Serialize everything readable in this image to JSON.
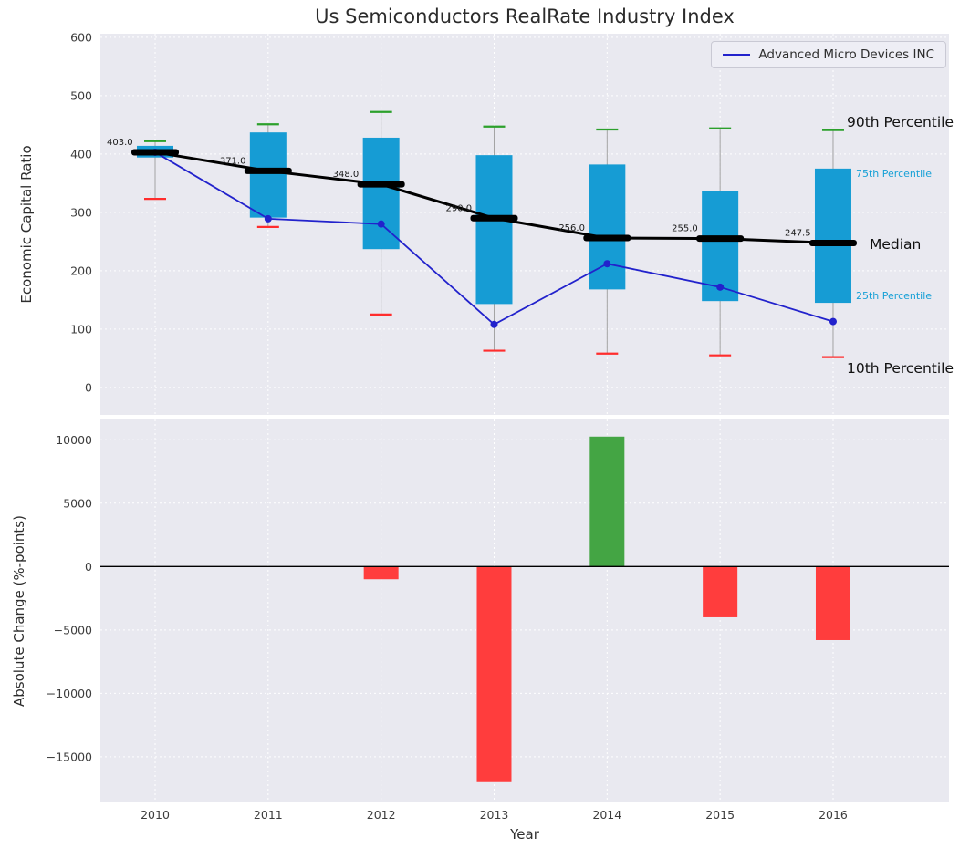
{
  "chart_data": [
    {
      "type": "boxplot+line",
      "title": "Us Semiconductors RealRate Industry Index",
      "ylabel": "Economic Capital Ratio",
      "ylim": [
        -47,
        606
      ],
      "yticks": [
        0,
        100,
        200,
        300,
        400,
        500,
        600
      ],
      "x": [
        2010,
        2011,
        2012,
        2013,
        2014,
        2015,
        2016
      ],
      "boxes": {
        "median": [
          403.0,
          371.0,
          348.0,
          290.0,
          256.0,
          255.0,
          247.5
        ],
        "median_labels": [
          "403.0",
          "371.0",
          "348.0",
          "290.0",
          "256.0",
          "255.0",
          "247.5"
        ],
        "p25": [
          394,
          291,
          237,
          143,
          168,
          148,
          145
        ],
        "p75": [
          414,
          437,
          428,
          398,
          382,
          337,
          375
        ],
        "p10": [
          323,
          275,
          125,
          63,
          58,
          55,
          52
        ],
        "p90": [
          422,
          451,
          472,
          447,
          442,
          444,
          441
        ]
      },
      "series": [
        {
          "name": "Advanced Micro Devices INC",
          "values": [
            403,
            289,
            280,
            108,
            212,
            172,
            113
          ]
        }
      ],
      "legend_label": "Advanced Micro Devices INC",
      "legend_position": "upper right",
      "right_labels": {
        "p90": "90th Percentile",
        "p75": "75th Percentile",
        "median": "Median",
        "p25": "25th Percentile",
        "p10": "10th Percentile"
      },
      "grid": true
    },
    {
      "type": "bar",
      "ylabel": "Absolute Change (%-points)",
      "xlabel": "Year",
      "ylim": [
        -18600,
        11600
      ],
      "yticks": [
        -15000,
        -10000,
        -5000,
        0,
        5000,
        10000
      ],
      "categories": [
        2010,
        2011,
        2012,
        2013,
        2014,
        2015,
        2016
      ],
      "values": [
        0,
        0,
        -1000,
        -17000,
        10250,
        -4000,
        -5800
      ],
      "grid": true
    }
  ],
  "colors": {
    "figure_background": "#ffffff",
    "axes_background": "#e9e9f0",
    "grid": "#ffffff",
    "box_fill": "#169cd4",
    "median": "#000000",
    "whisker": "#a3a3a3",
    "cap_p90": "#2ca02c",
    "cap_p10": "#ff2d2d",
    "series_line": "#2222cc",
    "bar_positive": "#44a544",
    "bar_negative": "#ff3d3d",
    "tick_text": "#3d3d3d",
    "label_text": "#2e2e2e",
    "annotation_text": "#1a1a1a",
    "percentile_side_text": "#16a0d6"
  }
}
